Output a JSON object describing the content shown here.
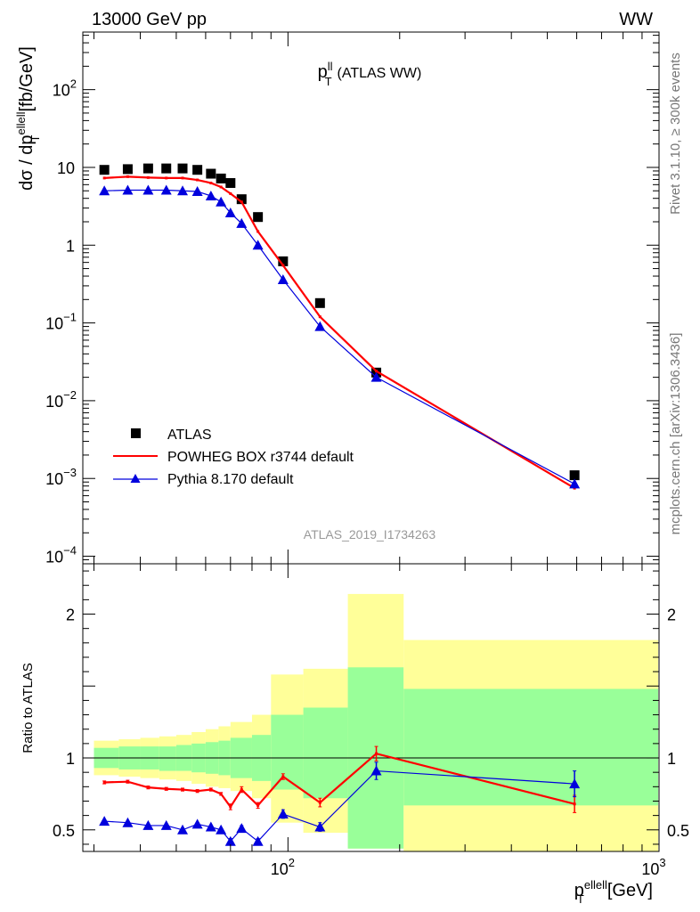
{
  "header": {
    "left": "13000 GeV pp",
    "right": "WW"
  },
  "side_labels": {
    "rivet": "Rivet 3.1.10, ≥ 300k events",
    "mcplots": "mcplots.cern.ch [arXiv:1306.3436]"
  },
  "analysis_id": "ATLAS_2019_I1734263",
  "colors": {
    "data": "#000000",
    "powheg": "#ff0000",
    "pythia": "#0000dd",
    "band_inner": "#99ff99",
    "band_outer": "#ffff99"
  },
  "chart_data": [
    {
      "type": "line",
      "title": "p_T^ll (ATLAS WW)",
      "title_main": "p",
      "title_sup": "ll",
      "title_sub": "T",
      "title_suffix": "(ATLAS WW)",
      "ylabel": "dσ / dp_T^ellell [fb/GeV]",
      "ylabel_main": "dσ / dp",
      "ylabel_sup": "ellell",
      "ylabel_sub": "T",
      "ylabel_suffix": "[fb/GeV]",
      "xscale": "log",
      "yscale": "log",
      "xlim": [
        28,
        1000
      ],
      "ylim": [
        8e-05,
        550
      ],
      "yticks": [
        {
          "v": 100,
          "base": "10",
          "exp": "2"
        },
        {
          "v": 10,
          "base": "10",
          "exp": ""
        },
        {
          "v": 1,
          "base": "1",
          "exp": ""
        },
        {
          "v": 0.1,
          "base": "10",
          "exp": "−1"
        },
        {
          "v": 0.01,
          "base": "10",
          "exp": "−2"
        },
        {
          "v": 0.001,
          "base": "10",
          "exp": "−3"
        },
        {
          "v": 0.0001,
          "base": "10",
          "exp": "−4"
        }
      ],
      "legend_position": "bottom-left",
      "series": [
        {
          "name": "ATLAS",
          "style": "data",
          "x": [
            32,
            37,
            42,
            47,
            52,
            57,
            62,
            66,
            70,
            75,
            83,
            97,
            122,
            173,
            592
          ],
          "y": [
            9.3,
            9.5,
            9.7,
            9.7,
            9.7,
            9.3,
            8.3,
            7.2,
            6.3,
            3.9,
            2.3,
            0.62,
            0.18,
            0.023,
            0.0011
          ]
        },
        {
          "name": "POWHEG BOX r3744 default",
          "style": "powheg",
          "x": [
            32,
            37,
            42,
            47,
            52,
            57,
            62,
            66,
            70,
            75,
            83,
            97,
            122,
            173,
            592
          ],
          "y": [
            7.3,
            7.6,
            7.4,
            7.3,
            7.3,
            6.9,
            6.3,
            5.6,
            4.6,
            3.6,
            1.5,
            0.55,
            0.12,
            0.024,
            0.00075
          ]
        },
        {
          "name": "Pythia 8.170 default",
          "style": "pythia",
          "x": [
            32,
            37,
            42,
            47,
            52,
            57,
            62,
            66,
            70,
            75,
            83,
            97,
            122,
            173,
            592
          ],
          "y": [
            5.0,
            5.1,
            5.1,
            5.1,
            5.0,
            4.9,
            4.3,
            3.6,
            2.6,
            1.9,
            1.0,
            0.36,
            0.09,
            0.02,
            0.00085
          ]
        }
      ]
    },
    {
      "type": "line",
      "ylabel": "Ratio to ATLAS",
      "xlabel": "p_T^ellell [GeV]",
      "xlabel_main": "p",
      "xlabel_sup": "ellell",
      "xlabel_sub": "T",
      "xlabel_suffix": "[GeV]",
      "xscale": "log",
      "xlim": [
        28,
        1000
      ],
      "ylim": [
        0.35,
        2.35
      ],
      "yticks": [
        0.5,
        1,
        2
      ],
      "xticks": [
        {
          "v": 100,
          "base": "10",
          "exp": "2"
        },
        {
          "v": 1000,
          "base": "10",
          "exp": "3"
        }
      ],
      "bands": {
        "edges": [
          30,
          35,
          40,
          45,
          50,
          55,
          60,
          65,
          70,
          80,
          90,
          110,
          145,
          205,
          1000
        ],
        "inner_lo": [
          0.93,
          0.92,
          0.92,
          0.91,
          0.91,
          0.9,
          0.89,
          0.88,
          0.86,
          0.84,
          0.78,
          0.72,
          0.37,
          0.67
        ],
        "inner_hi": [
          1.07,
          1.08,
          1.08,
          1.08,
          1.09,
          1.1,
          1.11,
          1.12,
          1.14,
          1.16,
          1.3,
          1.35,
          1.63,
          1.48
        ],
        "outer_lo": [
          0.88,
          0.87,
          0.86,
          0.85,
          0.84,
          0.82,
          0.8,
          0.79,
          0.77,
          0.72,
          0.55,
          0.48,
          0.37,
          0.35
        ],
        "outer_hi": [
          1.12,
          1.13,
          1.14,
          1.15,
          1.16,
          1.18,
          1.2,
          1.22,
          1.25,
          1.3,
          1.58,
          1.62,
          2.14,
          1.82
        ]
      },
      "series": [
        {
          "name": "POWHEG BOX r3744 default",
          "style": "powheg",
          "x": [
            32,
            37,
            42,
            47,
            52,
            57,
            62,
            66,
            70,
            75,
            83,
            97,
            122,
            173,
            592
          ],
          "y": [
            0.83,
            0.835,
            0.795,
            0.785,
            0.78,
            0.77,
            0.78,
            0.75,
            0.66,
            0.78,
            0.67,
            0.87,
            0.69,
            1.03,
            0.68
          ],
          "err": [
            0.01,
            0.01,
            0.01,
            0.01,
            0.01,
            0.01,
            0.01,
            0.01,
            0.02,
            0.02,
            0.02,
            0.02,
            0.03,
            0.05,
            0.06
          ]
        },
        {
          "name": "Pythia 8.170 default",
          "style": "pythia",
          "x": [
            32,
            37,
            42,
            47,
            52,
            57,
            62,
            66,
            70,
            75,
            83,
            97,
            122,
            173,
            592
          ],
          "y": [
            0.56,
            0.55,
            0.53,
            0.53,
            0.5,
            0.54,
            0.52,
            0.5,
            0.42,
            0.51,
            0.42,
            0.61,
            0.52,
            0.91,
            0.82
          ],
          "err": [
            0.01,
            0.01,
            0.01,
            0.01,
            0.01,
            0.01,
            0.01,
            0.01,
            0.02,
            0.02,
            0.02,
            0.03,
            0.03,
            0.06,
            0.09
          ]
        }
      ]
    }
  ]
}
